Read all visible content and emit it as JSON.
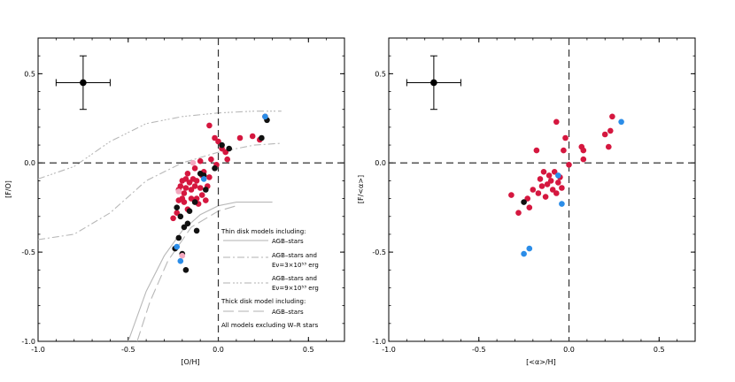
{
  "chart_data": [
    {
      "type": "scatter",
      "xlabel": "[O/H]",
      "ylabel": "[F/O]",
      "xlim": [
        -1.0,
        0.7
      ],
      "ylim": [
        -1.0,
        0.7
      ],
      "xticks": [
        -1.0,
        -0.5,
        0.0,
        0.5
      ],
      "xtick_labels": [
        "-1.0",
        "-0.5",
        "0.0",
        "0.5"
      ],
      "yticks": [
        -1.0,
        -0.5,
        0.0,
        0.5
      ],
      "ytick_labels": [
        "-1.0",
        "-0.5",
        "0.0",
        "0.5"
      ],
      "reference_lines": {
        "x": 0.0,
        "y": 0.0
      },
      "error_bar": {
        "x": -0.75,
        "y": 0.45,
        "xerr": 0.15,
        "yerr": 0.15
      },
      "series": [
        {
          "color": "#d5173f",
          "points": [
            [
              -0.25,
              -0.31
            ],
            [
              -0.23,
              -0.28
            ],
            [
              -0.22,
              -0.21
            ],
            [
              -0.22,
              -0.15
            ],
            [
              -0.21,
              -0.13
            ],
            [
              -0.2,
              -0.2
            ],
            [
              -0.2,
              -0.1
            ],
            [
              -0.19,
              -0.17
            ],
            [
              -0.19,
              -0.22
            ],
            [
              -0.18,
              -0.09
            ],
            [
              -0.18,
              -0.14
            ],
            [
              -0.17,
              -0.26
            ],
            [
              -0.17,
              -0.06
            ],
            [
              -0.16,
              -0.11
            ],
            [
              -0.15,
              -0.15
            ],
            [
              -0.15,
              -0.2
            ],
            [
              -0.14,
              -0.09
            ],
            [
              -0.13,
              -0.13
            ],
            [
              -0.13,
              -0.03
            ],
            [
              -0.12,
              -0.2
            ],
            [
              -0.12,
              -0.1
            ],
            [
              -0.11,
              -0.23
            ],
            [
              -0.1,
              -0.14
            ],
            [
              -0.1,
              0.01
            ],
            [
              -0.09,
              -0.07
            ],
            [
              -0.09,
              -0.18
            ],
            [
              -0.08,
              -0.05
            ],
            [
              -0.07,
              -0.21
            ],
            [
              -0.06,
              -0.13
            ],
            [
              -0.05,
              0.21
            ],
            [
              -0.05,
              -0.08
            ],
            [
              -0.04,
              0.02
            ],
            [
              -0.02,
              0.14
            ],
            [
              -0.01,
              -0.01
            ],
            [
              0.0,
              0.12
            ],
            [
              0.02,
              0.08
            ],
            [
              0.04,
              0.06
            ],
            [
              0.05,
              0.02
            ],
            [
              0.12,
              0.14
            ],
            [
              0.19,
              0.15
            ],
            [
              0.23,
              0.13
            ],
            [
              0.26,
              0.26
            ]
          ]
        },
        {
          "color": "#111111",
          "points": [
            [
              -0.23,
              -0.25
            ],
            [
              -0.24,
              -0.48
            ],
            [
              -0.22,
              -0.42
            ],
            [
              -0.21,
              -0.3
            ],
            [
              -0.2,
              -0.51
            ],
            [
              -0.18,
              -0.6
            ],
            [
              -0.19,
              -0.36
            ],
            [
              -0.17,
              -0.34
            ],
            [
              -0.16,
              -0.27
            ],
            [
              -0.13,
              -0.22
            ],
            [
              -0.12,
              -0.38
            ],
            [
              -0.1,
              -0.06
            ],
            [
              -0.08,
              -0.07
            ],
            [
              -0.07,
              -0.15
            ],
            [
              -0.02,
              -0.03
            ],
            [
              0.02,
              0.1
            ],
            [
              0.06,
              0.08
            ],
            [
              0.24,
              0.14
            ],
            [
              0.27,
              0.24
            ]
          ]
        },
        {
          "color": "#2b8de8",
          "points": [
            [
              -0.23,
              -0.47
            ],
            [
              -0.21,
              -0.55
            ],
            [
              -0.08,
              -0.09
            ],
            [
              0.26,
              0.26
            ]
          ]
        },
        {
          "color": "#f4a8bf",
          "points": [
            [
              -0.14,
              0.0
            ],
            [
              -0.22,
              -0.16
            ],
            [
              -0.2,
              -0.52
            ]
          ]
        }
      ],
      "curves": {
        "thin_agb": [
          [
            -0.5,
            -1.1
          ],
          [
            -0.4,
            -0.72
          ],
          [
            -0.3,
            -0.52
          ],
          [
            -0.2,
            -0.38
          ],
          [
            -0.1,
            -0.29
          ],
          [
            0.0,
            -0.24
          ],
          [
            0.1,
            -0.22
          ],
          [
            0.3,
            -0.22
          ]
        ],
        "thin_agb_e3": [
          [
            -1.0,
            -0.43
          ],
          [
            -0.8,
            -0.4
          ],
          [
            -0.6,
            -0.28
          ],
          [
            -0.4,
            -0.1
          ],
          [
            -0.2,
            0.0
          ],
          [
            0.0,
            0.06
          ],
          [
            0.2,
            0.1
          ],
          [
            0.35,
            0.11
          ]
        ],
        "thin_agb_e9": [
          [
            -1.0,
            -0.09
          ],
          [
            -0.8,
            -0.02
          ],
          [
            -0.6,
            0.12
          ],
          [
            -0.4,
            0.22
          ],
          [
            -0.2,
            0.26
          ],
          [
            0.0,
            0.28
          ],
          [
            0.2,
            0.29
          ],
          [
            0.35,
            0.29
          ]
        ],
        "thick_agb": [
          [
            -0.45,
            -1.0
          ],
          [
            -0.38,
            -0.78
          ],
          [
            -0.28,
            -0.55
          ],
          [
            -0.15,
            -0.36
          ],
          [
            0.0,
            -0.27
          ],
          [
            0.1,
            -0.24
          ]
        ]
      },
      "legend": {
        "thin_title": "Thin disk models including:",
        "thin_agb": "AGB–stars",
        "thin_e3_line1": "AGB–stars and",
        "thin_e3_line2": "Eν=3×10⁵³ erg",
        "thin_e9_line1": "AGB–stars and",
        "thin_e9_line2": "Eν=9×10⁵³ erg",
        "thick_title": "Thick disk model including:",
        "thick_agb": "AGB–stars",
        "note": "All models excluding W–R stars"
      }
    },
    {
      "type": "scatter",
      "xlabel": "[<α>/H]",
      "ylabel": "[F/<α>]",
      "xlim": [
        -1.0,
        0.7
      ],
      "ylim": [
        -1.0,
        0.7
      ],
      "xticks": [
        -1.0,
        -0.5,
        0.0,
        0.5
      ],
      "xtick_labels": [
        "-1.0",
        "-0.5",
        "0.0",
        "0.5"
      ],
      "yticks": [
        -1.0,
        -0.5,
        0.0,
        0.5
      ],
      "ytick_labels": [
        "-1.0",
        "-0.5",
        "0.0",
        "0.5"
      ],
      "reference_lines": {
        "x": 0.0,
        "y": 0.0
      },
      "error_bar": {
        "x": -0.75,
        "y": 0.45,
        "xerr": 0.15,
        "yerr": 0.15
      },
      "series": [
        {
          "color": "#d5173f",
          "points": [
            [
              -0.32,
              -0.18
            ],
            [
              -0.28,
              -0.28
            ],
            [
              -0.23,
              -0.2
            ],
            [
              -0.22,
              -0.25
            ],
            [
              -0.2,
              -0.15
            ],
            [
              -0.18,
              0.07
            ],
            [
              -0.17,
              -0.17
            ],
            [
              -0.16,
              -0.09
            ],
            [
              -0.15,
              -0.13
            ],
            [
              -0.14,
              -0.05
            ],
            [
              -0.13,
              -0.19
            ],
            [
              -0.12,
              -0.12
            ],
            [
              -0.11,
              -0.07
            ],
            [
              -0.1,
              -0.1
            ],
            [
              -0.09,
              -0.15
            ],
            [
              -0.08,
              -0.05
            ],
            [
              -0.07,
              0.23
            ],
            [
              -0.07,
              -0.17
            ],
            [
              -0.06,
              -0.11
            ],
            [
              -0.05,
              -0.08
            ],
            [
              -0.04,
              -0.14
            ],
            [
              -0.03,
              0.07
            ],
            [
              -0.02,
              0.14
            ],
            [
              0.0,
              -0.01
            ],
            [
              0.07,
              0.09
            ],
            [
              0.08,
              0.07
            ],
            [
              0.08,
              0.02
            ],
            [
              0.2,
              0.16
            ],
            [
              0.22,
              0.09
            ],
            [
              0.23,
              0.18
            ],
            [
              0.24,
              0.26
            ]
          ]
        },
        {
          "color": "#111111",
          "points": [
            [
              -0.25,
              -0.22
            ]
          ]
        },
        {
          "color": "#2b8de8",
          "points": [
            [
              -0.25,
              -0.51
            ],
            [
              -0.22,
              -0.48
            ],
            [
              -0.06,
              -0.07
            ],
            [
              -0.04,
              -0.23
            ],
            [
              0.29,
              0.23
            ]
          ]
        }
      ]
    }
  ]
}
